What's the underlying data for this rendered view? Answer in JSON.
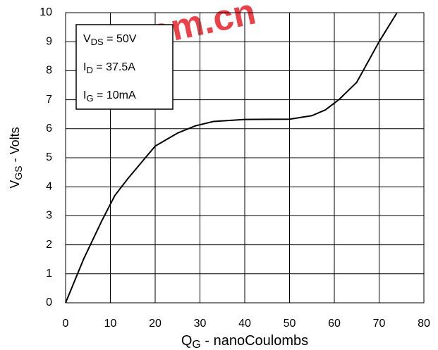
{
  "chart_data": {
    "type": "line",
    "x_label": {
      "main": "Q",
      "sub": "G",
      "rest": " - nanoCoulombs"
    },
    "y_label": {
      "main": "V",
      "sub": "GS",
      "rest": " - Volts"
    },
    "annotations": [
      {
        "main": "V",
        "sub": "DS",
        "rest": " = 50V"
      },
      {
        "main": "I",
        "sub": "D",
        "rest": " = 37.5A"
      },
      {
        "main": "I",
        "sub": "G",
        "rest": " = 10mA"
      }
    ],
    "watermark": ".com.cn",
    "x": [
      0,
      4,
      8,
      11,
      14,
      20,
      25,
      29,
      33,
      40,
      50,
      55,
      58,
      61,
      65,
      70,
      74
    ],
    "series": [
      {
        "color": "#000000",
        "values": [
          0,
          1.5,
          2.8,
          3.7,
          4.3,
          5.4,
          5.85,
          6.1,
          6.25,
          6.32,
          6.33,
          6.45,
          6.65,
          7.0,
          7.6,
          9.0,
          10
        ]
      }
    ],
    "xlim": [
      0,
      80
    ],
    "xticks": [
      0,
      10,
      20,
      30,
      40,
      50,
      60,
      70,
      80
    ],
    "ylim": [
      0,
      10
    ],
    "yticks": [
      0,
      1,
      2,
      3,
      4,
      5,
      6,
      7,
      8,
      9,
      10
    ],
    "grid": true
  }
}
